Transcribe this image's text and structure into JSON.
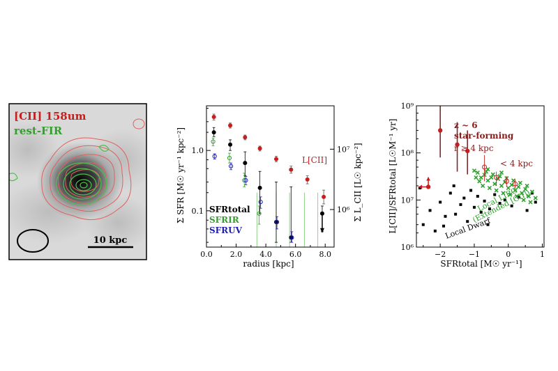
{
  "colors": {
    "cii_red": "#c61d1d",
    "fir_green": "#33a02c",
    "uv_blue": "#1f1fb4",
    "total_black": "#000000",
    "lirg_green": "#2ca02c",
    "dwarf_black": "#000000"
  },
  "chart_data": [
    {
      "type": "image",
      "panel": "map",
      "labels": {
        "cii": "[CII] 158um",
        "fir": "rest-FIR",
        "scalebar": "10 kpc"
      },
      "beam": "ellipse",
      "contours": [
        "[CII] red",
        "rest-FIR green"
      ]
    },
    {
      "type": "scatter",
      "panel": "radial-profile",
      "xlabel": "radius  [kpc]",
      "ylabel_left": "Σ SFR  [M☉ yr⁻¹ kpc⁻²]",
      "ylabel_right": "Σ L_CII  [L☉ kpc⁻²]",
      "xlim": [
        0,
        8.6
      ],
      "ylim_left": [
        0.025,
        5.5
      ],
      "yscale": "log",
      "x_ticks": [
        "0.0",
        "2.0",
        "4.0",
        "6.0",
        "8.0"
      ],
      "y_ticks_left": [
        {
          "value": 0.1,
          "label": "0.1"
        },
        {
          "value": 1.0,
          "label": "1.0"
        }
      ],
      "y_ticks_right": [
        {
          "value": 0.105,
          "label": "10⁶"
        },
        {
          "value": 1.05,
          "label": "10⁷"
        }
      ],
      "legend": [
        "SFRtotal",
        "SFRIR",
        "SFRUV"
      ],
      "cii_label": "L[CII]",
      "series": [
        {
          "name": "L[CII]",
          "marker": "filled-circle",
          "color": "#c61d1d",
          "points": [
            {
              "x": 0.5,
              "y": 3.6,
              "lo": 3.2,
              "hi": 4.0
            },
            {
              "x": 1.6,
              "y": 2.6,
              "lo": 2.35,
              "hi": 2.85
            },
            {
              "x": 2.6,
              "y": 1.65,
              "lo": 1.5,
              "hi": 1.8
            },
            {
              "x": 3.6,
              "y": 1.08,
              "lo": 0.98,
              "hi": 1.18
            },
            {
              "x": 4.7,
              "y": 0.72,
              "lo": 0.65,
              "hi": 0.8
            },
            {
              "x": 5.7,
              "y": 0.48,
              "lo": 0.42,
              "hi": 0.55
            },
            {
              "x": 6.8,
              "y": 0.33,
              "lo": 0.28,
              "hi": 0.38
            },
            {
              "x": 7.9,
              "y": 0.17,
              "lo": 0.13,
              "hi": 0.22
            }
          ]
        },
        {
          "name": "SFRtotal",
          "marker": "filled-circle",
          "color": "#000000",
          "points": [
            {
              "x": 0.5,
              "y": 2.0,
              "lo": 1.7,
              "hi": 2.4
            },
            {
              "x": 1.6,
              "y": 1.25,
              "lo": 1.0,
              "hi": 1.5
            },
            {
              "x": 2.6,
              "y": 0.62,
              "lo": 0.38,
              "hi": 0.95
            },
            {
              "x": 3.6,
              "y": 0.24,
              "lo": 0.09,
              "hi": 0.45
            },
            {
              "x": 4.7,
              "y": 0.065,
              "lo": 0.03,
              "hi": 0.3
            },
            {
              "x": 5.7,
              "y": 0.036,
              "lo": 0.03,
              "hi": 0.25
            },
            {
              "x": 7.8,
              "y": 0.09,
              "lo": 0.045,
              "hi": 0.12,
              "upper_limit": true
            }
          ]
        },
        {
          "name": "SFRIR",
          "marker": "open-circle",
          "color": "#33a02c",
          "points": [
            {
              "x": 0.45,
              "y": 1.4,
              "lo": 1.2,
              "hi": 1.6
            },
            {
              "x": 1.55,
              "y": 0.75,
              "lo": 0.62,
              "hi": 0.9
            },
            {
              "x": 2.55,
              "y": 0.32,
              "lo": 0.25,
              "hi": 0.42
            },
            {
              "x": 3.55,
              "y": 0.09,
              "lo": 0.06,
              "hi": 0.12
            }
          ]
        },
        {
          "name": "SFRUV",
          "marker": "open-circle",
          "color": "#1f1fb4",
          "points": [
            {
              "x": 0.55,
              "y": 0.8,
              "lo": 0.72,
              "hi": 0.88
            },
            {
              "x": 1.65,
              "y": 0.55,
              "lo": 0.48,
              "hi": 0.62
            },
            {
              "x": 2.65,
              "y": 0.32,
              "lo": 0.27,
              "hi": 0.37
            },
            {
              "x": 3.65,
              "y": 0.14,
              "lo": 0.11,
              "hi": 0.17
            },
            {
              "x": 4.75,
              "y": 0.065,
              "lo": 0.05,
              "hi": 0.08
            },
            {
              "x": 5.75,
              "y": 0.036,
              "lo": 0.03,
              "hi": 0.045
            }
          ]
        }
      ]
    },
    {
      "type": "scatter",
      "panel": "cii-deficit",
      "xlabel": "SFRtotal  [M☉ yr⁻¹]",
      "ylabel": "L[CII]/SFRtotal  [L☉M⁻¹ yr]",
      "xlim": [
        -2.7,
        1.05
      ],
      "ylim": [
        1000000,
        1000000000
      ],
      "yscale": "log",
      "x_ticks": [
        {
          "value": -2,
          "label": "−2"
        },
        {
          "value": -1,
          "label": "−1"
        },
        {
          "value": 0,
          "label": "0"
        },
        {
          "value": 1,
          "label": "1"
        }
      ],
      "y_ticks": [
        {
          "value": 1000000,
          "label": "10⁶"
        },
        {
          "value": 10000000,
          "label": "10⁷"
        },
        {
          "value": 100000000,
          "label": "10⁸"
        },
        {
          "value": 1000000000,
          "label": "10⁹"
        }
      ],
      "annotations": [
        "z ~ 6",
        "star-forming",
        "r ≥ 4 kpc",
        "< 4 kpc",
        "Local LIRG",
        "(Extended [CII])",
        "Local Dwarf"
      ],
      "series": [
        {
          "name": "r ≥ 4 kpc",
          "marker": "filled-circle",
          "color": "#c61d1d",
          "points": [
            {
              "x": -2.0,
              "y": 300000000,
              "lo": 80000000,
              "hi": 1000000000
            },
            {
              "x": -1.5,
              "y": 150000000,
              "lo": 40000000,
              "hi": 450000000
            },
            {
              "x": -1.2,
              "y": 110000000,
              "lo": 35000000,
              "hi": 300000000
            }
          ]
        },
        {
          "name": "< 4 kpc",
          "marker": "open-circle",
          "color": "#c61d1d",
          "points": [
            {
              "x": -0.7,
              "y": 50000000,
              "lo": 25000000,
              "hi": 90000000
            },
            {
              "x": -0.35,
              "y": 30000000,
              "lo": 20000000,
              "hi": 40000000
            },
            {
              "x": -0.05,
              "y": 25000000,
              "lo": 19000000,
              "hi": 32000000
            },
            {
              "x": 0.2,
              "y": 22000000,
              "lo": 17000000,
              "hi": 27000000
            }
          ]
        },
        {
          "name": "upper-limit",
          "marker": "filled-circle",
          "color": "#c61d1d",
          "points": [
            {
              "x": -2.35,
              "y": 19000000,
              "upper_limit": true
            }
          ]
        },
        {
          "name": "Local LIRG",
          "marker": "x",
          "color": "#2ca02c",
          "points": [
            {
              "x": -0.9,
              "y": 38000000
            },
            {
              "x": -0.8,
              "y": 30000000
            },
            {
              "x": -0.7,
              "y": 34000000
            },
            {
              "x": -0.6,
              "y": 26000000
            },
            {
              "x": -0.5,
              "y": 30000000
            },
            {
              "x": -0.4,
              "y": 22000000
            },
            {
              "x": -0.3,
              "y": 28000000
            },
            {
              "x": -0.2,
              "y": 20000000
            },
            {
              "x": -0.1,
              "y": 24000000
            },
            {
              "x": 0.0,
              "y": 18000000
            },
            {
              "x": 0.1,
              "y": 21000000
            },
            {
              "x": 0.2,
              "y": 16000000
            },
            {
              "x": 0.3,
              "y": 19000000
            },
            {
              "x": 0.4,
              "y": 14000000
            },
            {
              "x": 0.5,
              "y": 17000000
            },
            {
              "x": 0.6,
              "y": 12000000
            },
            {
              "x": 0.7,
              "y": 15000000
            },
            {
              "x": 0.8,
              "y": 11000000
            },
            {
              "x": -1.0,
              "y": 42000000
            },
            {
              "x": -0.85,
              "y": 25000000
            },
            {
              "x": -0.65,
              "y": 40000000
            },
            {
              "x": -0.45,
              "y": 35000000
            },
            {
              "x": -0.25,
              "y": 32000000
            },
            {
              "x": -0.05,
              "y": 29000000
            },
            {
              "x": 0.15,
              "y": 26000000
            },
            {
              "x": 0.35,
              "y": 23000000
            },
            {
              "x": -0.75,
              "y": 20000000
            },
            {
              "x": -0.55,
              "y": 18000000
            },
            {
              "x": -0.35,
              "y": 16000000
            },
            {
              "x": -0.15,
              "y": 14000000
            },
            {
              "x": 0.05,
              "y": 13000000
            },
            {
              "x": 0.25,
              "y": 12000000
            },
            {
              "x": 0.45,
              "y": 10000000
            },
            {
              "x": -0.95,
              "y": 30000000
            },
            {
              "x": -0.6,
              "y": 45000000
            },
            {
              "x": -0.2,
              "y": 38000000
            },
            {
              "x": 0.55,
              "y": 20000000
            },
            {
              "x": 0.65,
              "y": 9000000
            }
          ]
        },
        {
          "name": "Local Dwarf",
          "marker": "filled-square",
          "color": "#000000",
          "points": [
            {
              "x": -2.5,
              "y": 3000000
            },
            {
              "x": -2.3,
              "y": 6000000
            },
            {
              "x": -2.15,
              "y": 2200000
            },
            {
              "x": -2.0,
              "y": 9000000
            },
            {
              "x": -1.85,
              "y": 4500000
            },
            {
              "x": -1.7,
              "y": 14000000
            },
            {
              "x": -1.55,
              "y": 5000000
            },
            {
              "x": -1.4,
              "y": 8000000
            },
            {
              "x": -1.3,
              "y": 11000000
            },
            {
              "x": -1.2,
              "y": 3500000
            },
            {
              "x": -1.1,
              "y": 16000000
            },
            {
              "x": -1.0,
              "y": 7000000
            },
            {
              "x": -0.9,
              "y": 12000000
            },
            {
              "x": -0.8,
              "y": 5500000
            },
            {
              "x": -0.7,
              "y": 9500000
            },
            {
              "x": -0.55,
              "y": 6500000
            },
            {
              "x": -0.4,
              "y": 13000000
            },
            {
              "x": -0.25,
              "y": 8500000
            },
            {
              "x": -0.1,
              "y": 10000000
            },
            {
              "x": 0.1,
              "y": 7500000
            },
            {
              "x": 0.3,
              "y": 11500000
            },
            {
              "x": 0.55,
              "y": 6000000
            },
            {
              "x": 0.8,
              "y": 9000000
            },
            {
              "x": -1.9,
              "y": 2800000
            },
            {
              "x": -2.6,
              "y": 18000000
            },
            {
              "x": -1.6,
              "y": 20000000
            },
            {
              "x": -0.6,
              "y": 3000000
            },
            {
              "x": 0.7,
              "y": 14000000
            }
          ]
        }
      ]
    }
  ]
}
